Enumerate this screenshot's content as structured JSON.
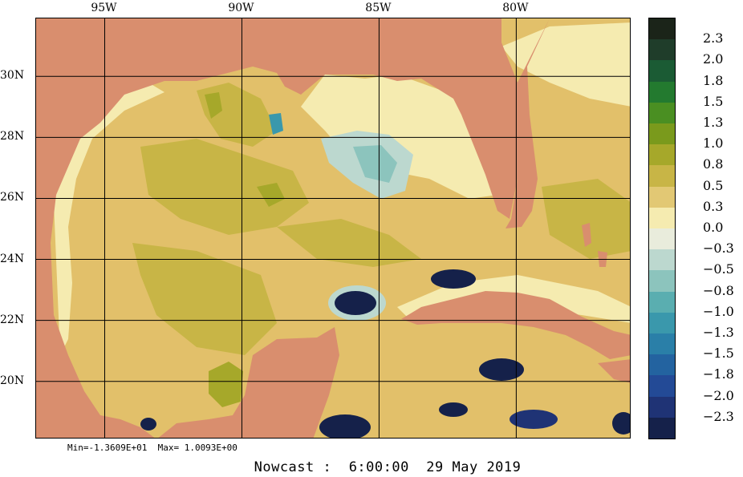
{
  "map": {
    "longitude_labels": [
      {
        "label": "95W",
        "lon": -95
      },
      {
        "label": "90W",
        "lon": -90
      },
      {
        "label": "85W",
        "lon": -85
      },
      {
        "label": "80W",
        "lon": -80
      }
    ],
    "latitude_labels": [
      {
        "label": "30N",
        "lat": 30
      },
      {
        "label": "28N",
        "lat": 28
      },
      {
        "label": "26N",
        "lat": 26
      },
      {
        "label": "24N",
        "lat": 24
      },
      {
        "label": "22N",
        "lat": 22
      },
      {
        "label": "20N",
        "lat": 20
      }
    ],
    "lon_range": [
      -97.5,
      -75.8
    ],
    "lat_range": [
      18.1,
      31.9
    ],
    "grid": true,
    "land_color": "#d98e6e",
    "water_bg_color": "#e2c06a"
  },
  "colorbar": {
    "position": "right",
    "levels": [
      {
        "label": "2.3",
        "color": "#1b2419"
      },
      {
        "label": "2.0",
        "color": "#1f3d2a"
      },
      {
        "label": "1.8",
        "color": "#1b5b34"
      },
      {
        "label": "1.5",
        "color": "#237a2f"
      },
      {
        "label": "1.3",
        "color": "#4a8f22"
      },
      {
        "label": "1.0",
        "color": "#7a9a1c"
      },
      {
        "label": "0.8",
        "color": "#a6a82a"
      },
      {
        "label": "0.5",
        "color": "#c8b546"
      },
      {
        "label": "0.3",
        "color": "#e2c874"
      },
      {
        "label": "0.0",
        "color": "#f5ebb0"
      },
      {
        "label": "−0.3",
        "color": "#e9ecdc"
      },
      {
        "label": "−0.5",
        "color": "#bcd8cf"
      },
      {
        "label": "−0.8",
        "color": "#8cc4bd"
      },
      {
        "label": "−1.0",
        "color": "#5aaeb0"
      },
      {
        "label": "−1.3",
        "color": "#3a98ac"
      },
      {
        "label": "−1.5",
        "color": "#2a7fa8"
      },
      {
        "label": "−1.8",
        "color": "#2363a0"
      },
      {
        "label": "−2.0",
        "color": "#234a96"
      },
      {
        "label": "−2.3",
        "color": "#1f3375"
      },
      {
        "label": "",
        "color": "#15214a"
      }
    ]
  },
  "stats": {
    "min_max_text": "Min=-1.3609E+01  Max= 1.0093E+00"
  },
  "caption": "Nowcast :  6:00:00  29 May 2019"
}
